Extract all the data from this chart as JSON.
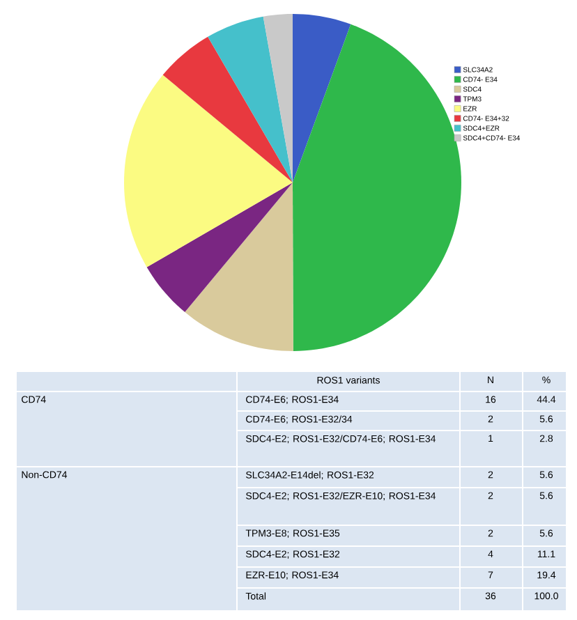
{
  "chart_data": {
    "type": "pie",
    "categories": [
      "SLC34A2",
      "CD74- E34",
      "SDC4",
      "TPM3",
      "EZR",
      "CD74- E34+32",
      "SDC4+EZR",
      "SDC4+CD74- E34"
    ],
    "values": [
      5.6,
      44.4,
      11.1,
      5.6,
      19.4,
      5.6,
      5.6,
      2.8
    ],
    "colors": [
      "#3a5cc6",
      "#2fb84b",
      "#d9ca9c",
      "#7a2682",
      "#fbfb82",
      "#e8393f",
      "#45c0cb",
      "#c9c9c9"
    ],
    "legend": "top right",
    "annotations": [
      "ROS1 variants",
      "N",
      "%",
      "CD74",
      "CD74-E6; ROS1-E34",
      "16",
      "44.4",
      "CD74-E6; ROS1-E32/34",
      "2",
      "5.6",
      "SDC4-E2; ROS1-E32/CD74-E6; ROS1-E34",
      "1",
      "2.8",
      "Non-CD74",
      "SLC34A2-E14del; ROS1-E32",
      "2",
      "5.6",
      "SDC4-E2; ROS1-E32/EZR-E10; ROS1-E34",
      "2",
      "5.6",
      "TPM3-E8; ROS1-E35",
      "2",
      "5.6",
      "SDC4-E2; ROS1-E32",
      "4",
      "11.1",
      "EZR-E10; ROS1-E34",
      "7",
      "19.4",
      "Total",
      "36",
      "100.0"
    ]
  }
}
